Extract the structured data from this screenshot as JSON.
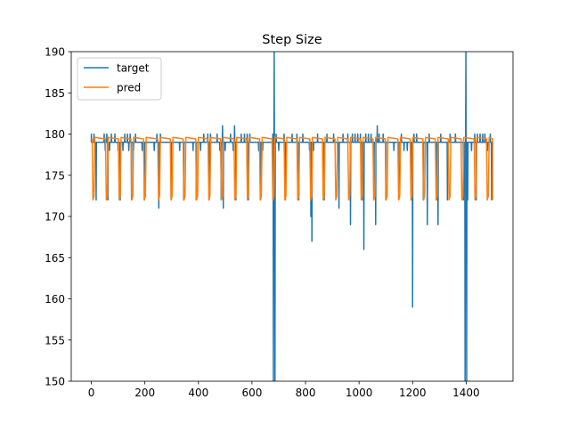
{
  "chart_data": {
    "type": "line",
    "title": "Step Size",
    "xlabel": "",
    "ylabel": "",
    "xlim": [
      -75,
      1575
    ],
    "ylim": [
      150,
      190
    ],
    "xticks": [
      0,
      200,
      400,
      600,
      800,
      1000,
      1200,
      1400
    ],
    "yticks": [
      150,
      155,
      160,
      165,
      170,
      175,
      180,
      185,
      190
    ],
    "grid": false,
    "legend_position": "top-left",
    "n_points": 1500,
    "series": [
      {
        "name": "target",
        "color": "#1f77b4",
        "baseline": 179,
        "dips": [
          [
            0,
            180
          ],
          [
            10,
            180
          ],
          [
            18,
            172
          ],
          [
            48,
            180
          ],
          [
            52,
            178
          ],
          [
            58,
            180
          ],
          [
            62,
            172
          ],
          [
            68,
            178
          ],
          [
            75,
            180
          ],
          [
            88,
            180
          ],
          [
            100,
            178
          ],
          [
            108,
            172
          ],
          [
            118,
            178
          ],
          [
            125,
            180
          ],
          [
            135,
            180
          ],
          [
            140,
            178
          ],
          [
            145,
            180
          ],
          [
            150,
            172
          ],
          [
            158,
            178
          ],
          [
            165,
            180
          ],
          [
            190,
            178
          ],
          [
            198,
            172
          ],
          [
            235,
            178
          ],
          [
            245,
            180
          ],
          [
            252,
            171
          ],
          [
            258,
            180
          ],
          [
            290,
            179
          ],
          [
            298,
            172
          ],
          [
            330,
            178
          ],
          [
            345,
            172
          ],
          [
            380,
            178
          ],
          [
            392,
            172
          ],
          [
            408,
            178
          ],
          [
            420,
            180
          ],
          [
            435,
            180
          ],
          [
            440,
            172
          ],
          [
            445,
            180
          ],
          [
            470,
            180
          ],
          [
            480,
            178
          ],
          [
            485,
            172
          ],
          [
            490,
            181
          ],
          [
            493,
            171
          ],
          [
            500,
            178
          ],
          [
            520,
            180
          ],
          [
            530,
            178
          ],
          [
            535,
            181
          ],
          [
            540,
            172
          ],
          [
            560,
            180
          ],
          [
            572,
            180
          ],
          [
            582,
            180
          ],
          [
            587,
            172
          ],
          [
            592,
            180
          ],
          [
            625,
            178
          ],
          [
            632,
            172
          ],
          [
            640,
            178
          ],
          [
            678,
            180
          ],
          [
            680,
            150
          ],
          [
            683,
            190
          ],
          [
            686,
            150
          ],
          [
            690,
            180
          ],
          [
            700,
            178
          ],
          [
            720,
            180
          ],
          [
            725,
            172
          ],
          [
            750,
            180
          ],
          [
            768,
            180
          ],
          [
            775,
            172
          ],
          [
            790,
            180
          ],
          [
            815,
            178
          ],
          [
            820,
            170
          ],
          [
            824,
            167
          ],
          [
            830,
            178
          ],
          [
            845,
            180
          ],
          [
            870,
            172
          ],
          [
            880,
            180
          ],
          [
            905,
            180
          ],
          [
            920,
            178
          ],
          [
            925,
            171
          ],
          [
            940,
            180
          ],
          [
            958,
            180
          ],
          [
            968,
            169
          ],
          [
            975,
            180
          ],
          [
            985,
            180
          ],
          [
            995,
            180
          ],
          [
            1005,
            180
          ],
          [
            1012,
            172
          ],
          [
            1018,
            166
          ],
          [
            1025,
            180
          ],
          [
            1035,
            180
          ],
          [
            1045,
            180
          ],
          [
            1055,
            172
          ],
          [
            1062,
            169
          ],
          [
            1068,
            181
          ],
          [
            1075,
            180
          ],
          [
            1090,
            180
          ],
          [
            1100,
            172
          ],
          [
            1130,
            178
          ],
          [
            1148,
            172
          ],
          [
            1158,
            180
          ],
          [
            1168,
            178
          ],
          [
            1180,
            178
          ],
          [
            1195,
            172
          ],
          [
            1200,
            159
          ],
          [
            1205,
            180
          ],
          [
            1215,
            180
          ],
          [
            1232,
            179
          ],
          [
            1240,
            172
          ],
          [
            1255,
            169
          ],
          [
            1262,
            180
          ],
          [
            1275,
            179
          ],
          [
            1290,
            172
          ],
          [
            1295,
            169
          ],
          [
            1305,
            180
          ],
          [
            1315,
            179
          ],
          [
            1330,
            172
          ],
          [
            1340,
            180
          ],
          [
            1360,
            180
          ],
          [
            1375,
            179
          ],
          [
            1390,
            172
          ],
          [
            1396,
            150
          ],
          [
            1399,
            190
          ],
          [
            1402,
            150
          ],
          [
            1406,
            172
          ],
          [
            1420,
            178
          ],
          [
            1432,
            180
          ],
          [
            1438,
            172
          ],
          [
            1442,
            180
          ],
          [
            1452,
            180
          ],
          [
            1462,
            180
          ],
          [
            1470,
            180
          ],
          [
            1480,
            178
          ],
          [
            1490,
            180
          ],
          [
            1495,
            172
          ],
          [
            1498,
            178
          ]
        ]
      },
      {
        "name": "pred",
        "color": "#ff7f0e",
        "baseline": 179.4,
        "dip_value": 172,
        "dip_starts": [
          5,
          55,
          103,
          150,
          197,
          250,
          297,
          345,
          392,
          438,
          485,
          535,
          582,
          630,
          677,
          722,
          770,
          818,
          865,
          912,
          960,
          1007,
          1054,
          1100,
          1147,
          1193,
          1240,
          1287,
          1335,
          1383,
          1432,
          1478
        ]
      }
    ]
  }
}
